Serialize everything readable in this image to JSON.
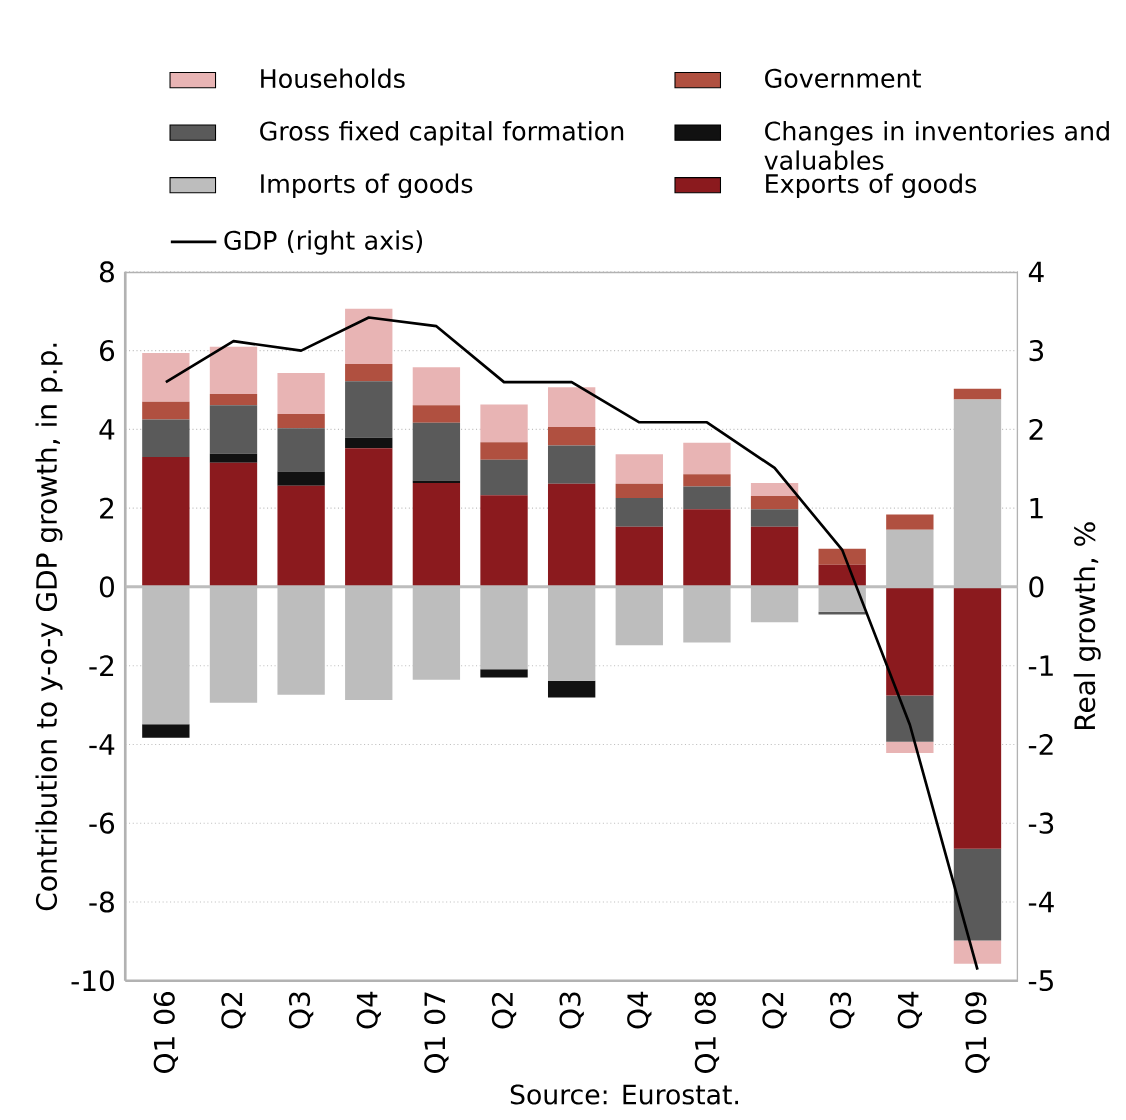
{
  "chart_data": {
    "type": "bar",
    "stacked": true,
    "ylabel": "Contribution to y-o-y GDP growth, in p.p.",
    "y2label": "Real growth, %",
    "annotations": [
      "Source: Eurostat."
    ],
    "categories": [
      "Q1 06",
      "Q2",
      "Q3",
      "Q4",
      "Q1 07",
      "Q2",
      "Q3",
      "Q4",
      "Q1 08",
      "Q2",
      "Q3",
      "Q4",
      "Q1 09"
    ],
    "ylim": [
      -10,
      8
    ],
    "yticks": [
      -10,
      -8,
      -6,
      -4,
      -2,
      0,
      2,
      4,
      6,
      8
    ],
    "y2lim": [
      -5,
      4
    ],
    "y2ticks": [
      -5,
      -4,
      -3,
      -2,
      -1,
      0,
      1,
      2,
      3,
      4
    ],
    "grid": "y",
    "legend": "top",
    "ref_lines": [
      {
        "axis": "y",
        "value": 0,
        "color": "#bdbdbd"
      }
    ],
    "series": [
      {
        "name": "Exports of goods",
        "color": "#8b1a1e",
        "values": [
          3.3,
          3.15,
          2.57,
          3.52,
          2.64,
          2.33,
          2.62,
          1.53,
          1.97,
          1.53,
          0.56,
          -2.76,
          -6.65
        ]
      },
      {
        "name": "Imports of goods",
        "color": "#bdbdbd",
        "values": [
          -3.49,
          -2.94,
          -2.74,
          -2.87,
          -2.36,
          -2.09,
          -2.38,
          -1.48,
          -1.41,
          -0.9,
          -0.63,
          1.45,
          4.76
        ]
      },
      {
        "name": "Changes in inventories and valuables",
        "color": "#111111",
        "values": [
          -0.34,
          0.23,
          0.36,
          0.27,
          0.06,
          -0.21,
          -0.43,
          null,
          null,
          null,
          null,
          null,
          null
        ]
      },
      {
        "name": "Gross fixed capital formation",
        "color": "#5a5a5a",
        "values": [
          0.95,
          1.23,
          1.1,
          1.43,
          1.47,
          0.9,
          0.97,
          0.73,
          0.58,
          0.44,
          -0.07,
          -1.17,
          -2.33
        ]
      },
      {
        "name": "Government",
        "color": "#b05040",
        "values": [
          0.45,
          0.29,
          0.36,
          0.44,
          0.44,
          0.44,
          0.47,
          0.36,
          0.31,
          0.34,
          0.41,
          0.39,
          0.27
        ]
      },
      {
        "name": "Households",
        "color": "#e8b4b4",
        "values": [
          1.24,
          1.2,
          1.04,
          1.4,
          0.97,
          0.96,
          1.01,
          0.75,
          0.8,
          0.33,
          null,
          -0.29,
          -0.59
        ]
      },
      {
        "name": "GDP (right axis)",
        "type": "line",
        "axis": "y2",
        "color": "#000000",
        "values": [
          2.6,
          3.12,
          3.0,
          3.42,
          3.31,
          2.6,
          2.6,
          2.09,
          2.09,
          1.51,
          0.47,
          -1.75,
          -4.86
        ]
      }
    ]
  }
}
